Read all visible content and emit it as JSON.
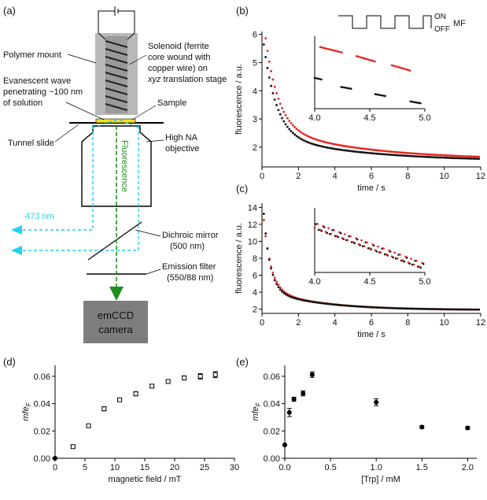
{
  "panel_labels": {
    "a": "(a)",
    "b": "(b)",
    "c": "(c)",
    "d": "(d)",
    "e": "(e)"
  },
  "schematic": {
    "polymer_mount": "Polymer mount",
    "solenoid_1": "Solenoid (ferrite",
    "solenoid_2": "core wound with",
    "solenoid_3": "copper wire) on",
    "solenoid_4a": "xyz",
    "solenoid_4b": " translation stage",
    "evanescent_1": "Evanescent wave",
    "evanescent_2": "penetrating ~100 nm",
    "evanescent_3": "of solution",
    "sample": "Sample",
    "tunnel_slide": "Tunnel slide",
    "objective_1": "High NA",
    "objective_2": "objective",
    "fluorescence": "Fluorescence",
    "laser": "473 nm",
    "dichroic_1": "Dichroic mirror",
    "dichroic_2": "(500 nm)",
    "filter_1": "Emission filter",
    "filter_2": "(550/88 nm)",
    "camera_1": "emCCD",
    "camera_2": "camera"
  },
  "colors": {
    "red": "#e8221e",
    "black": "#111111",
    "cyan": "#22d0f0",
    "green": "#1e8f1e",
    "solenoid_gray": "#b8b8b8",
    "camera_gray": "#7d7d7d",
    "sample_yellow": "#f5e21c"
  },
  "chart_data": [
    {
      "id": "b",
      "type": "scatter",
      "xlabel": "time / s",
      "ylabel": "fluorescence / a.u.",
      "xlim": [
        0,
        12
      ],
      "ylim": [
        1.3,
        6.1
      ],
      "xticks": [
        0,
        2,
        4,
        6,
        8,
        10,
        12
      ],
      "yticks": [
        2,
        3,
        4,
        5,
        6
      ],
      "series": [
        {
          "color": "red",
          "x0": 0.1,
          "dt": 0.1,
          "n": 119,
          "A": 4.2,
          "tau": 0.7,
          "B": 1.2,
          "tau2": 5,
          "C": 1.55
        },
        {
          "color": "black",
          "x0": 0.1,
          "dt": 0.1,
          "n": 119,
          "A": 3.7,
          "tau": 0.7,
          "B": 0.95,
          "tau2": 5,
          "C": 1.5
        }
      ],
      "inset": {
        "xlim": [
          4.0,
          5.0
        ],
        "xticks": [
          4.0,
          4.5,
          5.0
        ],
        "mf_on": "ON",
        "mf_off": "OFF",
        "mf_label": "MF",
        "red_segments": [
          [
            4.05,
            4.25,
            2.24,
            2.21
          ],
          [
            4.38,
            4.55,
            2.19,
            2.16
          ],
          [
            4.7,
            4.87,
            2.14,
            2.11
          ]
        ],
        "black_segments": [
          [
            4.0,
            4.07,
            2.07,
            2.06
          ],
          [
            4.24,
            4.33,
            2.02,
            2.01
          ],
          [
            4.55,
            4.64,
            1.98,
            1.97
          ],
          [
            4.87,
            4.96,
            1.94,
            1.93
          ]
        ]
      }
    },
    {
      "id": "c",
      "type": "scatter",
      "xlabel": "time / s",
      "ylabel": "fluorescence / a.u.",
      "xlim": [
        0,
        12
      ],
      "ylim": [
        1.5,
        14.5
      ],
      "xticks": [
        0,
        2,
        4,
        6,
        8,
        10,
        12
      ],
      "yticks": [
        2,
        4,
        6,
        8,
        10,
        12,
        14
      ],
      "series": [
        {
          "color": "red",
          "x0": 0.1,
          "dt": 0.1,
          "n": 119,
          "A": 10.5,
          "tau": 0.4,
          "B": 2.5,
          "tau2": 3,
          "C": 1.9
        },
        {
          "color": "black",
          "x0": 0.1,
          "dt": 0.1,
          "n": 119,
          "A": 12.0,
          "tau": 0.35,
          "B": 2.4,
          "tau2": 3,
          "C": 1.9
        }
      ],
      "inset": {
        "xlim": [
          4.0,
          5.0
        ],
        "xticks": [
          4.0,
          4.5,
          5.0
        ]
      }
    },
    {
      "id": "d",
      "type": "scatter",
      "xlabel": "magnetic field / mT",
      "ylabel": "mfe_F",
      "xlim": [
        0,
        30
      ],
      "ylim": [
        0,
        0.068
      ],
      "xticks": [
        0,
        5,
        10,
        15,
        20,
        25,
        30
      ],
      "yticks": [
        0,
        0.02,
        0.04,
        0.06
      ],
      "points": [
        [
          0,
          0
        ],
        [
          3,
          0.0085
        ],
        [
          5.6,
          0.0238
        ],
        [
          8.2,
          0.0362
        ],
        [
          10.8,
          0.0428
        ],
        [
          13.5,
          0.0472
        ],
        [
          16.2,
          0.0528
        ],
        [
          18.9,
          0.0562
        ],
        [
          21.6,
          0.0588
        ],
        [
          24.3,
          0.06
        ],
        [
          26.8,
          0.0612
        ]
      ],
      "err": [
        0.0005,
        0.0008,
        0.001,
        0.0015,
        0.0012,
        0.0015,
        0.0013,
        0.0012,
        0.0015,
        0.002,
        0.0022
      ]
    },
    {
      "id": "e",
      "type": "scatter",
      "xlabel": "[Trp] / mM",
      "ylabel": "mfe_F",
      "xlim": [
        0,
        2.1
      ],
      "ylim": [
        0,
        0.068
      ],
      "xticks": [
        0.0,
        0.5,
        1.0,
        1.5,
        2.0
      ],
      "yticks": [
        0.0,
        0.02,
        0.04,
        0.06
      ],
      "points": [
        [
          0,
          0.0098
        ],
        [
          0.05,
          0.0335
        ],
        [
          0.1,
          0.0432
        ],
        [
          0.2,
          0.0475
        ],
        [
          0.3,
          0.0612
        ],
        [
          1.0,
          0.041
        ],
        [
          1.5,
          0.0228
        ],
        [
          2.0,
          0.0222
        ]
      ],
      "err": [
        0.0006,
        0.003,
        0.0015,
        0.0018,
        0.002,
        0.0025,
        0.001,
        0.001
      ]
    }
  ]
}
